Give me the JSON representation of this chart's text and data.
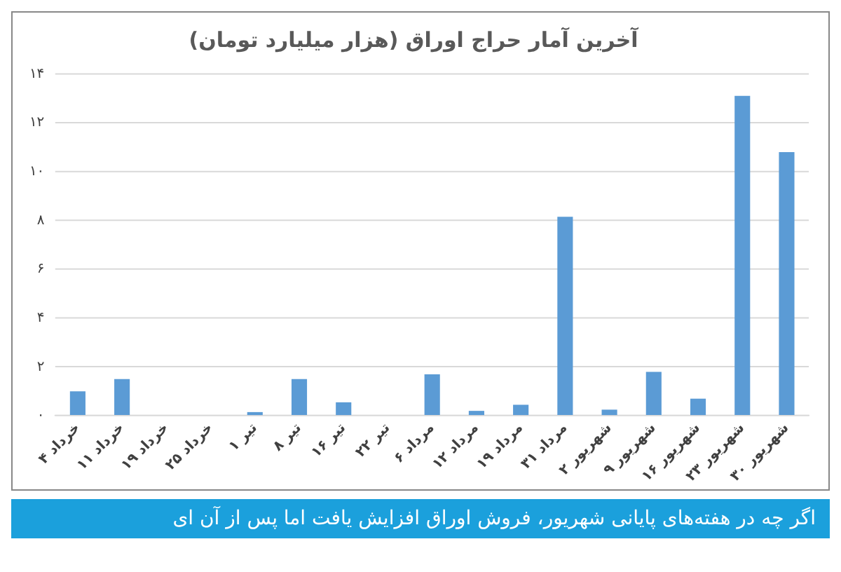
{
  "chart_data": {
    "type": "bar",
    "title": "آخرین آمار حراج اوراق (هزار میلیارد تومان)",
    "categories": [
      "۴ خرداد",
      "۱۱ خرداد",
      "۱۹ خرداد",
      "۲۵ خرداد",
      "۱ تیر",
      "۸ تیر",
      "۱۶ تیر",
      "۲۲ تیر",
      "۶ مرداد",
      "۱۲ مرداد",
      "۱۹ مرداد",
      "۳۱ مرداد",
      "۲ شهریور",
      "۹ شهریور",
      "۱۶ شهریور",
      "۲۳ شهریور",
      "۳۰ شهریور"
    ],
    "values": [
      1.0,
      1.5,
      0,
      0,
      0.15,
      1.5,
      0.55,
      0,
      1.7,
      0.2,
      0.45,
      8.15,
      0.25,
      1.8,
      0.7,
      13.1,
      10.8
    ],
    "color": "#5b9bd5",
    "ylim": [
      0,
      14
    ],
    "yticks": [
      {
        "value": 0,
        "label": "۰"
      },
      {
        "value": 2,
        "label": "۲"
      },
      {
        "value": 4,
        "label": "۴"
      },
      {
        "value": 6,
        "label": "۶"
      },
      {
        "value": 8,
        "label": "۸"
      },
      {
        "value": 10,
        "label": "۱۰"
      },
      {
        "value": 12,
        "label": "۱۲"
      },
      {
        "value": 14,
        "label": "۱۴"
      }
    ],
    "grid": "y",
    "legend": false,
    "annotations": [
      "اگر چه در هفته‌های پایانی شهریور، فروش اوراق افزایش یافت اما پس از آن ای"
    ]
  }
}
